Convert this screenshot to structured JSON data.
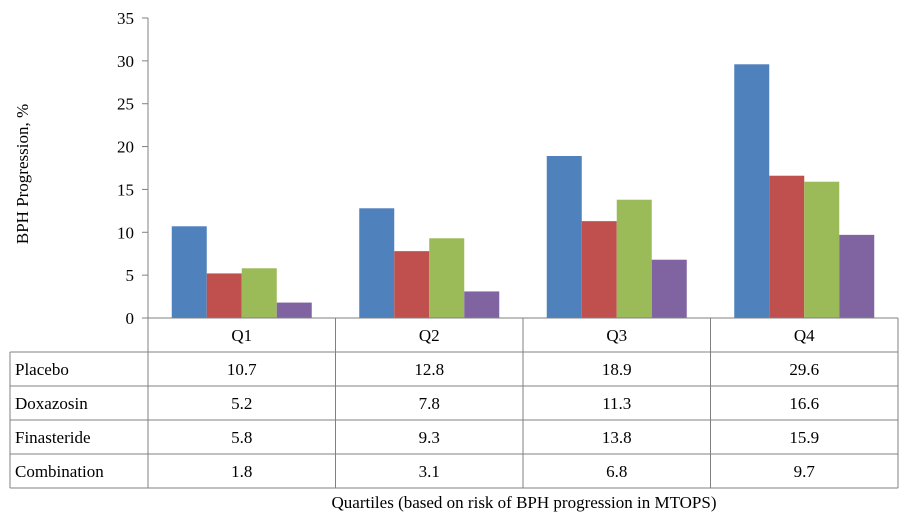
{
  "chart_data": {
    "type": "bar",
    "categories": [
      "Q1",
      "Q2",
      "Q3",
      "Q4"
    ],
    "series": [
      {
        "name": "Placebo",
        "values": [
          10.7,
          12.8,
          18.9,
          29.6
        ],
        "color": "#4F81BD"
      },
      {
        "name": "Doxazosin",
        "values": [
          5.2,
          7.8,
          11.3,
          16.6
        ],
        "color": "#C0504D"
      },
      {
        "name": "Finasteride",
        "values": [
          5.8,
          9.3,
          13.8,
          15.9
        ],
        "color": "#9BBB59"
      },
      {
        "name": "Combination",
        "values": [
          1.8,
          3.1,
          6.8,
          9.7
        ],
        "color": "#8064A2"
      }
    ],
    "ylabel": "BPH Progression, %",
    "xlabel": "Quartiles (based on risk of BPH progression in MTOPS)",
    "ylim": [
      0,
      35
    ],
    "yticks": [
      0,
      5,
      10,
      15,
      20,
      25,
      30,
      35
    ],
    "grid": false,
    "legend": "data-table below plot",
    "table_cells": [
      [
        "10.7",
        "12.8",
        "18.9",
        "29.6"
      ],
      [
        "5.2",
        "7.8",
        "11.3",
        "16.6"
      ],
      [
        "5.8",
        "9.3",
        "13.8",
        "15.9"
      ],
      [
        "1.8",
        "3.1",
        "6.8",
        "9.7"
      ]
    ]
  }
}
